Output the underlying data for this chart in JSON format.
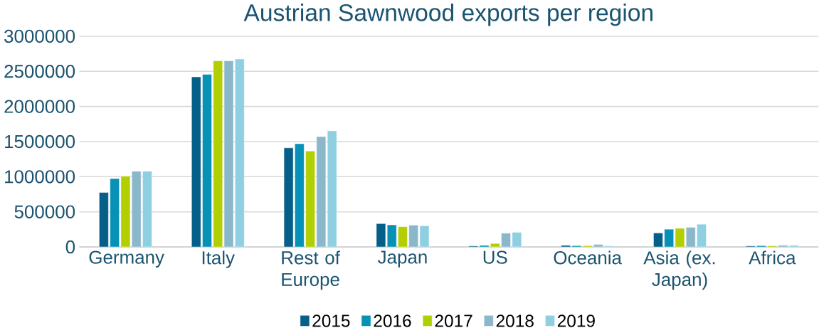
{
  "chart_data": {
    "type": "bar",
    "title": "Austrian Sawnwood exports per region",
    "categories": [
      "Germany",
      "Italy",
      "Rest of Europe",
      "Japan",
      "US",
      "Oceania",
      "Asia (ex. Japan)",
      "Africa"
    ],
    "series": [
      {
        "name": "2015",
        "color": "#065f88",
        "values": [
          775000,
          2421000,
          1410000,
          332000,
          13000,
          22000,
          199000,
          13000
        ]
      },
      {
        "name": "2016",
        "color": "#0891b6",
        "values": [
          974000,
          2457000,
          1469000,
          314000,
          22000,
          18000,
          252000,
          18000
        ]
      },
      {
        "name": "2017",
        "color": "#b2cf03",
        "values": [
          1007000,
          2649000,
          1365000,
          288000,
          49000,
          18000,
          265000,
          15000
        ]
      },
      {
        "name": "2018",
        "color": "#8bb7cb",
        "values": [
          1077000,
          2649000,
          1572000,
          310000,
          195000,
          35000,
          279000,
          22000
        ]
      },
      {
        "name": "2019",
        "color": "#8ecfe2",
        "values": [
          1077000,
          2675000,
          1653000,
          301000,
          208000,
          15000,
          323000,
          22000
        ]
      }
    ],
    "ylim": [
      0,
      3000000
    ],
    "yticks": [
      0,
      500000,
      1000000,
      1500000,
      2000000,
      2500000,
      3000000
    ],
    "grid": "y",
    "legend": "bottom"
  }
}
